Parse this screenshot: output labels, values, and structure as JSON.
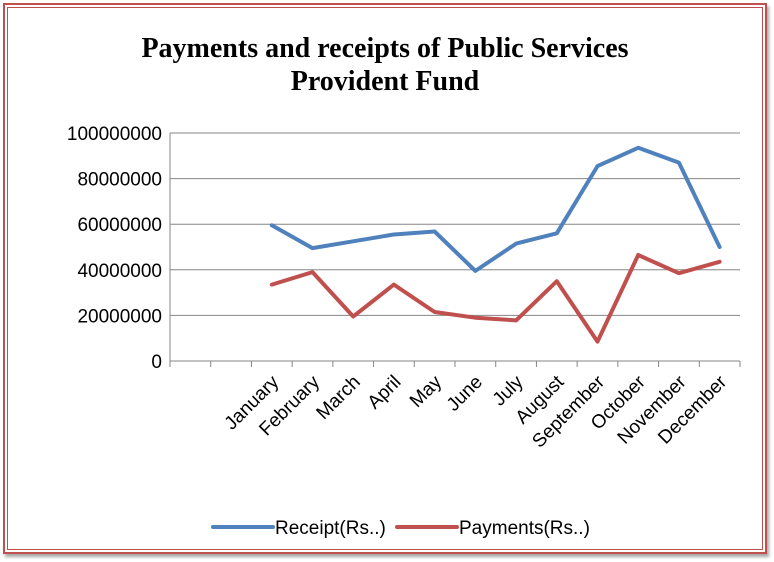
{
  "chart_data": {
    "type": "line",
    "title": "Payments and receipts of Public Services\nProvident Fund",
    "xlabel": "",
    "ylabel": "",
    "categories": [
      "January",
      "February",
      "March",
      "April",
      "May",
      "June",
      "July",
      "August",
      "September",
      "October",
      "November",
      "December"
    ],
    "ylim": [
      0,
      100000000
    ],
    "yticks": [
      "0",
      "20000000",
      "40000000",
      "60000000",
      "80000000",
      "100000000"
    ],
    "grid": true,
    "legend_position": "bottom",
    "series": [
      {
        "name": "Receipt(Rs..)",
        "color": "#4f81bd",
        "values": [
          59500000,
          49500000,
          52500000,
          55500000,
          56800000,
          39500000,
          51500000,
          56000000,
          85500000,
          93500000,
          87000000,
          50000000
        ]
      },
      {
        "name": "Payments(Rs..)",
        "color": "#c0504d",
        "values": [
          33500000,
          39000000,
          19500000,
          33500000,
          21500000,
          19000000,
          17800000,
          35000000,
          8500000,
          46500000,
          38500000,
          43500000
        ]
      }
    ]
  }
}
